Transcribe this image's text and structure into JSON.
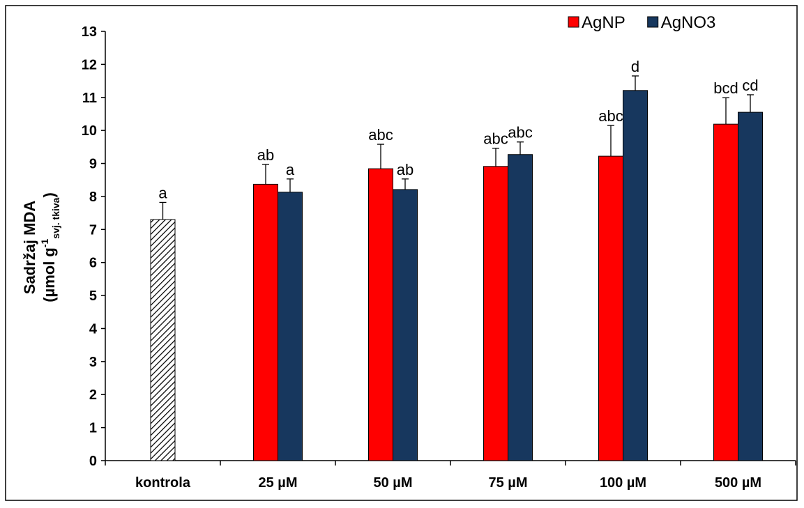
{
  "chart_data": {
    "type": "bar",
    "y_label": {
      "line1": "Sadržaj MDA",
      "line2": "(µmol g",
      "superscript": "-1",
      "subscript": "svj. tkiva",
      "closing": ")"
    },
    "categories": [
      "kontrola",
      "25 µM",
      "50 µM",
      "75 µM",
      "100 µM",
      "500 µM"
    ],
    "control": {
      "value": 7.3,
      "error": 0.52,
      "label": "a"
    },
    "series": [
      {
        "name": "AgNP",
        "color": "#ff0000",
        "values": [
          null,
          8.37,
          8.84,
          8.91,
          9.22,
          10.19
        ],
        "errors": [
          null,
          0.6,
          0.74,
          0.55,
          0.93,
          0.8
        ],
        "labels": [
          null,
          "ab",
          "abc",
          "abc",
          "abc",
          "bcd"
        ]
      },
      {
        "name": "AgNO3",
        "color": "#17375e",
        "values": [
          null,
          8.13,
          8.21,
          9.27,
          11.21,
          10.55
        ],
        "errors": [
          null,
          0.4,
          0.32,
          0.38,
          0.44,
          0.53
        ],
        "labels": [
          null,
          "a",
          "ab",
          "abc",
          "d",
          "cd"
        ]
      }
    ],
    "ylim": [
      0,
      13
    ],
    "yticks": [
      0,
      1,
      2,
      3,
      4,
      5,
      6,
      7,
      8,
      9,
      10,
      11,
      12,
      13
    ],
    "grid": false
  }
}
